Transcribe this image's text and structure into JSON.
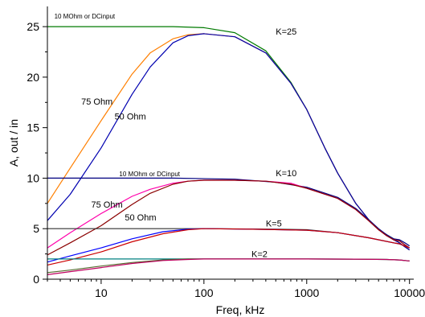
{
  "chart_data": {
    "type": "line",
    "xlabel": "Freq, kHz",
    "ylabel": "A,  out / in",
    "xscale": "log",
    "xlim": [
      3,
      11000
    ],
    "ylim": [
      0,
      27
    ],
    "grid": false,
    "xticks": [
      {
        "value": 10,
        "label": "10"
      },
      {
        "value": 100,
        "label": "100"
      },
      {
        "value": 1000,
        "label": "1000"
      },
      {
        "value": 10000,
        "label": "10000"
      }
    ],
    "yticks": [
      {
        "value": 0,
        "label": "0"
      },
      {
        "value": 5,
        "label": "5"
      },
      {
        "value": 10,
        "label": "10"
      },
      {
        "value": 15,
        "label": "15"
      },
      {
        "value": 20,
        "label": "20"
      },
      {
        "value": 25,
        "label": "25"
      }
    ],
    "annotations": [
      {
        "text": "10 MOhm or DCinput",
        "x": 3.5,
        "y": 25.8,
        "size": "small"
      },
      {
        "text": "K=25",
        "x": 500,
        "y": 24.2,
        "size": "normal"
      },
      {
        "text": "75 Ohm",
        "x": 6.4,
        "y": 17.3,
        "size": "normal"
      },
      {
        "text": "50 Ohm",
        "x": 13.5,
        "y": 15.8,
        "size": "normal"
      },
      {
        "text": "10 MOhm or DCinput",
        "x": 15,
        "y": 10.2,
        "size": "small"
      },
      {
        "text": "K=10",
        "x": 500,
        "y": 10.2,
        "size": "normal"
      },
      {
        "text": "75 Ohm",
        "x": 8,
        "y": 7.1,
        "size": "normal"
      },
      {
        "text": "50 Ohm",
        "x": 17,
        "y": 5.8,
        "size": "normal"
      },
      {
        "text": "K=5",
        "x": 400,
        "y": 5.2,
        "size": "normal"
      },
      {
        "text": "K=2",
        "x": 290,
        "y": 2.2,
        "size": "normal"
      }
    ],
    "series": [
      {
        "color": "#007a00",
        "x": [
          3,
          50,
          100,
          200,
          400,
          700,
          1000,
          1500,
          2000,
          3000,
          4000,
          5000,
          6000,
          7000,
          8000,
          9000,
          10000
        ],
        "y": [
          25,
          25,
          24.9,
          24.4,
          22.6,
          19.5,
          16.8,
          13,
          10.5,
          7.5,
          5.9,
          4.9,
          4.4,
          4,
          3.6,
          3.2,
          2.9
        ]
      },
      {
        "color": "#ff7f00",
        "x": [
          3,
          5,
          10,
          20,
          30,
          50,
          70,
          100,
          200,
          400,
          700,
          1000,
          1500,
          2000,
          3000,
          4000,
          5000,
          6000,
          7000,
          8000,
          9000,
          10000
        ],
        "y": [
          7.5,
          11,
          15.7,
          20.3,
          22.4,
          23.8,
          24.2,
          24.3,
          24,
          22.4,
          19.4,
          16.8,
          13,
          10.5,
          7.5,
          5.9,
          4.9,
          4.4,
          3.9,
          3.6,
          3.2,
          2.9
        ]
      },
      {
        "color": "#0000b0",
        "x": [
          3,
          5,
          10,
          20,
          30,
          50,
          70,
          100,
          200,
          400,
          700,
          1000,
          1500,
          2000,
          3000,
          4000,
          5000,
          6000,
          7000,
          8000,
          9000,
          10000
        ],
        "y": [
          5.8,
          8.4,
          13,
          18.3,
          21,
          23.4,
          24.1,
          24.3,
          24,
          22.4,
          19.4,
          16.8,
          13,
          10.5,
          7.5,
          5.9,
          4.9,
          4.4,
          3.9,
          3.6,
          3.2,
          2.9
        ]
      },
      {
        "color": "#000080",
        "x": [
          3,
          50,
          200,
          500,
          1000,
          2000,
          3000,
          4000,
          5000,
          6000,
          7000,
          8000,
          9000,
          10000
        ],
        "y": [
          10,
          10,
          9.9,
          9.6,
          9.1,
          8.1,
          7,
          5.9,
          5,
          4.4,
          4,
          3.9,
          3.6,
          3.3
        ]
      },
      {
        "color": "#ff00aa",
        "x": [
          3,
          5,
          10,
          20,
          30,
          50,
          70,
          100,
          200,
          400,
          700,
          1000,
          2000,
          3000,
          4000,
          5000,
          6000,
          7000,
          8000,
          9000,
          10000
        ],
        "y": [
          3.1,
          4.6,
          6.5,
          8.2,
          8.9,
          9.5,
          9.7,
          9.8,
          9.8,
          9.7,
          9.5,
          9,
          8,
          6.9,
          5.8,
          4.9,
          4.3,
          3.9,
          3.8,
          3.4,
          3.1
        ]
      },
      {
        "color": "#8b0000",
        "x": [
          3,
          5,
          10,
          20,
          30,
          50,
          70,
          100,
          200,
          400,
          700,
          1000,
          2000,
          3000,
          4000,
          5000,
          6000,
          7000,
          8000,
          9000,
          10000
        ],
        "y": [
          2.4,
          3.6,
          5.3,
          7.4,
          8.5,
          9.4,
          9.7,
          9.8,
          9.8,
          9.7,
          9.4,
          9,
          8,
          6.9,
          5.8,
          4.9,
          4.3,
          3.9,
          3.8,
          3.4,
          3.1
        ]
      },
      {
        "color": "#303030",
        "x": [
          3,
          100,
          500,
          1000,
          2000,
          4000,
          7000,
          8000,
          10000
        ],
        "y": [
          5,
          5,
          4.95,
          4.9,
          4.6,
          4.1,
          3.6,
          3.5,
          3.1
        ]
      },
      {
        "color": "#0000ff",
        "x": [
          3,
          5,
          10,
          20,
          40,
          70,
          100,
          300,
          1000,
          2000,
          4000,
          7000,
          8000,
          10000
        ],
        "y": [
          1.7,
          2.3,
          3.1,
          4,
          4.7,
          4.95,
          5,
          4.95,
          4.85,
          4.6,
          4.1,
          3.6,
          3.5,
          3.1
        ]
      },
      {
        "color": "#cc0000",
        "x": [
          3,
          5,
          10,
          20,
          40,
          70,
          100,
          300,
          1000,
          2000,
          4000,
          7000,
          8000,
          10000
        ],
        "y": [
          1.4,
          1.9,
          2.7,
          3.7,
          4.5,
          4.9,
          5,
          4.95,
          4.85,
          4.6,
          4.1,
          3.6,
          3.5,
          3.1
        ]
      },
      {
        "color": "#008080",
        "x": [
          3,
          100,
          1000,
          3000,
          6000,
          8000,
          10000
        ],
        "y": [
          2,
          2,
          2,
          1.98,
          1.95,
          1.9,
          1.8
        ]
      },
      {
        "color": "#556b2f",
        "x": [
          3,
          5,
          10,
          20,
          40,
          70,
          100,
          1000,
          3000,
          6000,
          8000,
          10000
        ],
        "y": [
          0.65,
          0.9,
          1.3,
          1.65,
          1.9,
          2,
          2,
          2,
          1.98,
          1.95,
          1.9,
          1.8
        ]
      },
      {
        "color": "#c00060",
        "x": [
          3,
          5,
          10,
          20,
          40,
          70,
          100,
          1000,
          3000,
          6000,
          8000,
          10000
        ],
        "y": [
          0.45,
          0.75,
          1.15,
          1.55,
          1.85,
          1.95,
          2,
          2,
          1.98,
          1.95,
          1.9,
          1.8
        ]
      }
    ]
  }
}
